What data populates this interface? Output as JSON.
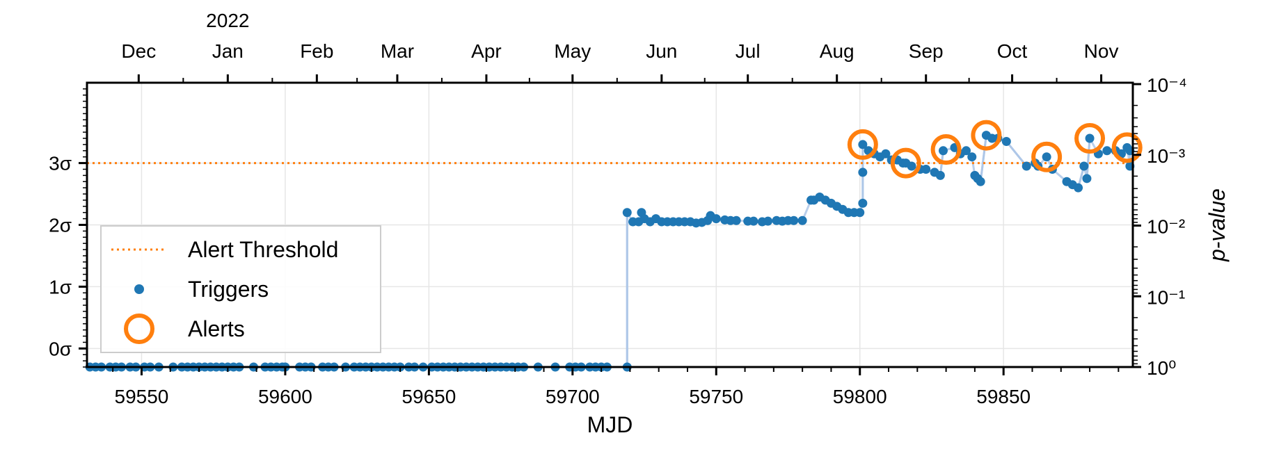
{
  "chart_data": {
    "type": "scatter",
    "xlabel": "MJD",
    "x_ticks": [
      59550,
      59600,
      59650,
      59700,
      59750,
      59800,
      59850
    ],
    "xlim": [
      59531,
      59895
    ],
    "top_axis": {
      "year_label": "2022",
      "months": [
        {
          "label": "Dec",
          "mjd": 59549
        },
        {
          "label": "Jan",
          "mjd": 59580
        },
        {
          "label": "Feb",
          "mjd": 59611
        },
        {
          "label": "Mar",
          "mjd": 59639
        },
        {
          "label": "Apr",
          "mjd": 59670
        },
        {
          "label": "May",
          "mjd": 59700
        },
        {
          "label": "Jun",
          "mjd": 59731
        },
        {
          "label": "Jul",
          "mjd": 59761
        },
        {
          "label": "Aug",
          "mjd": 59792
        },
        {
          "label": "Sep",
          "mjd": 59823
        },
        {
          "label": "Oct",
          "mjd": 59853
        },
        {
          "label": "Nov",
          "mjd": 59884
        }
      ]
    },
    "y_left_ticks": [
      {
        "label": "0σ",
        "sigma": 0
      },
      {
        "label": "1σ",
        "sigma": 1
      },
      {
        "label": "2σ",
        "sigma": 2
      },
      {
        "label": "3σ",
        "sigma": 3
      }
    ],
    "ylim_sigma": [
      -0.3,
      4.3
    ],
    "y_right_label": "p-value",
    "y_right_ticks": [
      "10⁻⁴",
      "10⁻³",
      "10⁻²",
      "10⁻¹",
      "10⁰"
    ],
    "threshold": {
      "label": "Alert Threshold",
      "sigma": 3,
      "color": "#ff7f0e"
    },
    "legend": {
      "position": "lower-left",
      "items": [
        {
          "label": "Alert Threshold",
          "kind": "dotted-line"
        },
        {
          "label": "Triggers",
          "kind": "dot"
        },
        {
          "label": "Alerts",
          "kind": "ring"
        }
      ]
    },
    "grid": true,
    "colors": {
      "triggers": "#1f77b4",
      "alerts": "#ff7f0e",
      "connector": "#aec7e8"
    },
    "triggers": [
      [
        59532,
        -0.3
      ],
      [
        59534,
        -0.3
      ],
      [
        59536,
        -0.3
      ],
      [
        59539,
        -0.3
      ],
      [
        59541,
        -0.3
      ],
      [
        59543,
        -0.3
      ],
      [
        59546,
        -0.3
      ],
      [
        59548,
        -0.3
      ],
      [
        59551,
        -0.3
      ],
      [
        59553,
        -0.3
      ],
      [
        59556,
        -0.3
      ],
      [
        59561,
        -0.3
      ],
      [
        59564,
        -0.3
      ],
      [
        59566,
        -0.3
      ],
      [
        59568,
        -0.3
      ],
      [
        59570,
        -0.3
      ],
      [
        59572,
        -0.3
      ],
      [
        59574,
        -0.3
      ],
      [
        59576,
        -0.3
      ],
      [
        59578,
        -0.3
      ],
      [
        59580,
        -0.3
      ],
      [
        59582,
        -0.3
      ],
      [
        59584,
        -0.3
      ],
      [
        59589,
        -0.3
      ],
      [
        59593,
        -0.3
      ],
      [
        59595,
        -0.3
      ],
      [
        59597,
        -0.3
      ],
      [
        59599,
        -0.3
      ],
      [
        59600,
        -0.3
      ],
      [
        59605,
        -0.3
      ],
      [
        59607,
        -0.3
      ],
      [
        59609,
        -0.3
      ],
      [
        59613,
        -0.3
      ],
      [
        59615,
        -0.3
      ],
      [
        59617,
        -0.3
      ],
      [
        59621,
        -0.3
      ],
      [
        59624,
        -0.3
      ],
      [
        59626,
        -0.3
      ],
      [
        59628,
        -0.3
      ],
      [
        59630,
        -0.3
      ],
      [
        59632,
        -0.3
      ],
      [
        59634,
        -0.3
      ],
      [
        59636,
        -0.3
      ],
      [
        59638,
        -0.3
      ],
      [
        59640,
        -0.3
      ],
      [
        59643,
        -0.3
      ],
      [
        59645,
        -0.3
      ],
      [
        59648,
        -0.3
      ],
      [
        59651,
        -0.3
      ],
      [
        59653,
        -0.3
      ],
      [
        59655,
        -0.3
      ],
      [
        59657,
        -0.3
      ],
      [
        59659,
        -0.3
      ],
      [
        59661,
        -0.3
      ],
      [
        59663,
        -0.3
      ],
      [
        59665,
        -0.3
      ],
      [
        59667,
        -0.3
      ],
      [
        59669,
        -0.3
      ],
      [
        59671,
        -0.3
      ],
      [
        59673,
        -0.3
      ],
      [
        59675,
        -0.3
      ],
      [
        59677,
        -0.3
      ],
      [
        59679,
        -0.3
      ],
      [
        59681,
        -0.3
      ],
      [
        59683,
        -0.3
      ],
      [
        59688,
        -0.3
      ],
      [
        59694,
        -0.3
      ],
      [
        59699,
        -0.3
      ],
      [
        59701,
        -0.3
      ],
      [
        59703,
        -0.3
      ],
      [
        59706,
        -0.3
      ],
      [
        59708,
        -0.3
      ],
      [
        59710,
        -0.3
      ],
      [
        59712,
        -0.3
      ],
      [
        59719,
        -0.3
      ],
      [
        59719,
        2.2
      ],
      [
        59721,
        2.05
      ],
      [
        59723,
        2.05
      ],
      [
        59724,
        2.2
      ],
      [
        59725,
        2.1
      ],
      [
        59727,
        2.05
      ],
      [
        59729,
        2.1
      ],
      [
        59731,
        2.05
      ],
      [
        59733,
        2.05
      ],
      [
        59735,
        2.05
      ],
      [
        59737,
        2.05
      ],
      [
        59739,
        2.05
      ],
      [
        59741,
        2.05
      ],
      [
        59743,
        2.03
      ],
      [
        59745,
        2.04
      ],
      [
        59747,
        2.07
      ],
      [
        59748,
        2.15
      ],
      [
        59750,
        2.1
      ],
      [
        59753,
        2.08
      ],
      [
        59755,
        2.07
      ],
      [
        59757,
        2.07
      ],
      [
        59761,
        2.06
      ],
      [
        59763,
        2.06
      ],
      [
        59766,
        2.05
      ],
      [
        59768,
        2.06
      ],
      [
        59771,
        2.07
      ],
      [
        59773,
        2.06
      ],
      [
        59775,
        2.07
      ],
      [
        59777,
        2.07
      ],
      [
        59780,
        2.07
      ],
      [
        59783,
        2.4
      ],
      [
        59784,
        2.4
      ],
      [
        59786,
        2.45
      ],
      [
        59788,
        2.4
      ],
      [
        59790,
        2.35
      ],
      [
        59792,
        2.3
      ],
      [
        59794,
        2.25
      ],
      [
        59796,
        2.2
      ],
      [
        59798,
        2.2
      ],
      [
        59800,
        2.2
      ],
      [
        59801,
        2.35
      ],
      [
        59801,
        2.85
      ],
      [
        59801,
        3.3
      ],
      [
        59803,
        3.2
      ],
      [
        59805,
        3.15
      ],
      [
        59807,
        3.1
      ],
      [
        59809,
        3.15
      ],
      [
        59811,
        3.05
      ],
      [
        59813,
        3.05
      ],
      [
        59815,
        3.0
      ],
      [
        59816,
        3.0
      ],
      [
        59818,
        2.95
      ],
      [
        59821,
        2.9
      ],
      [
        59823,
        2.9
      ],
      [
        59826,
        2.85
      ],
      [
        59828,
        2.8
      ],
      [
        59829,
        3.2
      ],
      [
        59833,
        3.25
      ],
      [
        59835,
        3.15
      ],
      [
        59837,
        3.2
      ],
      [
        59839,
        3.1
      ],
      [
        59840,
        2.8
      ],
      [
        59841,
        2.75
      ],
      [
        59842,
        2.7
      ],
      [
        59844,
        3.45
      ],
      [
        59846,
        3.4
      ],
      [
        59848,
        3.4
      ],
      [
        59851,
        3.35
      ],
      [
        59858,
        2.95
      ],
      [
        59861,
        3.0
      ],
      [
        59862,
        2.95
      ],
      [
        59865,
        3.1
      ],
      [
        59867,
        2.9
      ],
      [
        59872,
        2.7
      ],
      [
        59874,
        2.65
      ],
      [
        59876,
        2.6
      ],
      [
        59878,
        2.95
      ],
      [
        59879,
        2.75
      ],
      [
        59880,
        3.4
      ],
      [
        59883,
        3.15
      ],
      [
        59886,
        3.2
      ],
      [
        59889,
        3.2
      ],
      [
        59891,
        3.15
      ],
      [
        59893,
        3.25
      ],
      [
        59894,
        2.95
      ],
      [
        59894,
        3.2
      ]
    ],
    "connector_segments": [
      [
        [
          59719,
          -0.3
        ],
        [
          59719,
          2.2
        ]
      ],
      [
        [
          59801,
          2.35
        ],
        [
          59801,
          3.3
        ]
      ],
      [
        [
          59828,
          2.8
        ],
        [
          59829,
          3.2
        ]
      ],
      [
        [
          59842,
          2.7
        ],
        [
          59844,
          3.45
        ]
      ],
      [
        [
          59851,
          3.35
        ],
        [
          59858,
          2.95
        ]
      ],
      [
        [
          59876,
          2.6
        ],
        [
          59878,
          2.95
        ]
      ],
      [
        [
          59879,
          2.75
        ],
        [
          59880,
          3.4
        ]
      ],
      [
        [
          59894,
          2.95
        ],
        [
          59894,
          3.2
        ]
      ]
    ],
    "alerts": [
      [
        59801,
        3.3
      ],
      [
        59816,
        3.0
      ],
      [
        59830,
        3.22
      ],
      [
        59844,
        3.45
      ],
      [
        59865,
        3.1
      ],
      [
        59880,
        3.4
      ],
      [
        59893,
        3.25
      ]
    ]
  }
}
